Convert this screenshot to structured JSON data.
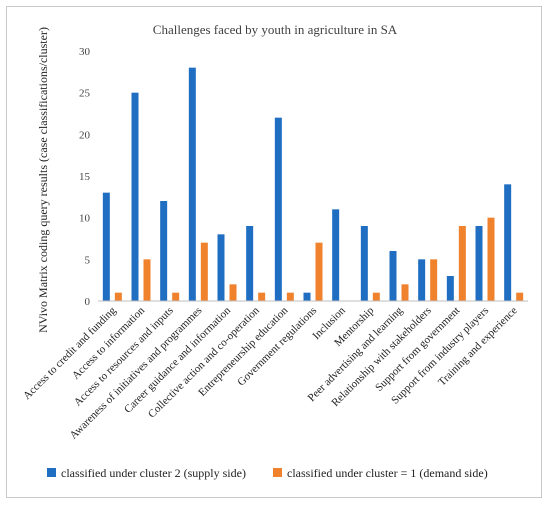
{
  "chart_data": {
    "type": "bar",
    "title": "Challenges faced by youth in agriculture in SA",
    "xlabel": "",
    "ylabel": "NVivo Matrix coding query results (case classifications/cluster)",
    "ylim": [
      0,
      30
    ],
    "yticks": [
      0,
      5,
      10,
      15,
      20,
      25,
      30
    ],
    "grid": false,
    "legend_position": "bottom",
    "categories": [
      "Access to credit and funding",
      "Access to information",
      "Access to resources and inputs",
      "Awareness of initiatives and programmes",
      "Career guidance and information",
      "Collective action and co-operation",
      "Entrepreneurship education",
      "Government regulations",
      "Inclusion",
      "Mentorship",
      "Peer advertising and learning",
      "Relationship with stakeholders",
      "Support from government",
      "Support from industry players",
      "Training and experience"
    ],
    "series": [
      {
        "name": "classified under cluster 2 (supply side)",
        "color": "#1f6ec2",
        "values": [
          13,
          25,
          12,
          28,
          8,
          9,
          22,
          1,
          11,
          9,
          6,
          5,
          3,
          9,
          14
        ]
      },
      {
        "name": "classified under cluster = 1 (demand side)",
        "color": "#f0822d",
        "values": [
          1,
          5,
          1,
          7,
          2,
          1,
          1,
          7,
          0,
          1,
          2,
          5,
          9,
          10,
          1
        ]
      }
    ]
  }
}
